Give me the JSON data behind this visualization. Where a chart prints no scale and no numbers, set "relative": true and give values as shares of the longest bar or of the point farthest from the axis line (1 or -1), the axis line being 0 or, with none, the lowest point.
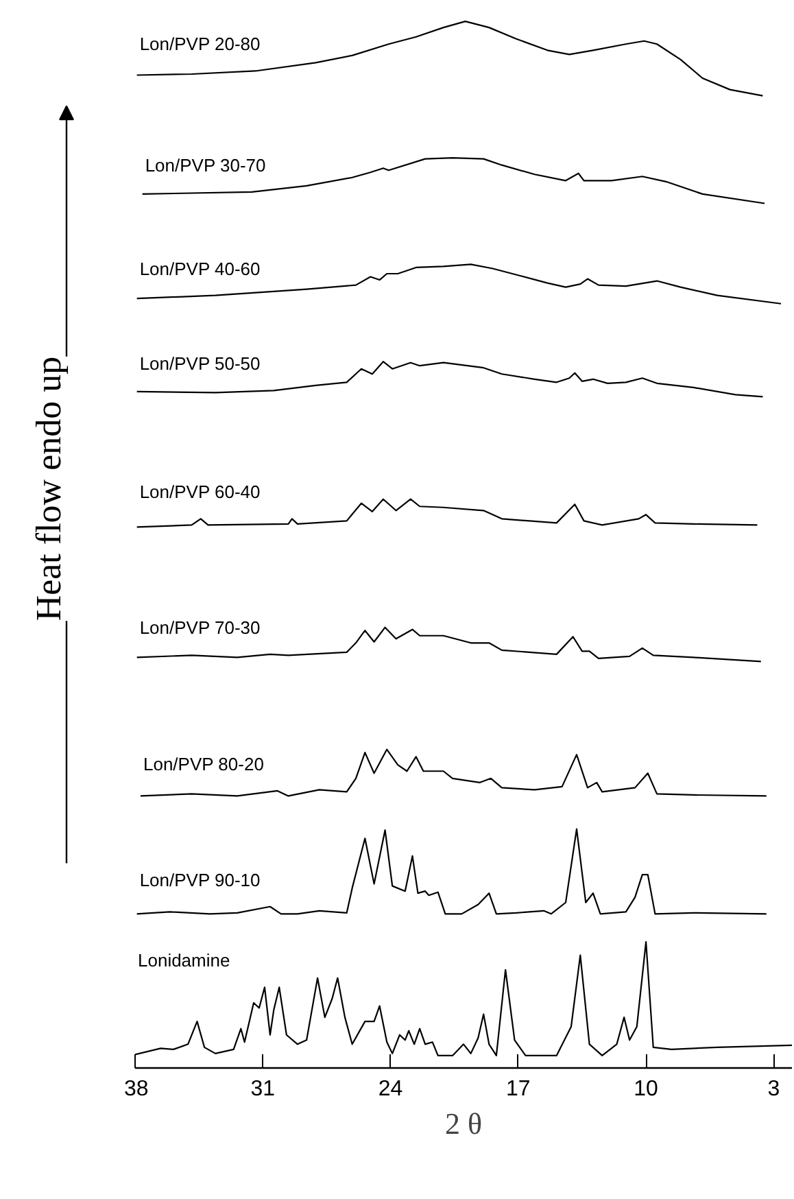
{
  "chart_data": {
    "type": "line",
    "relative": true,
    "xlabel": "2 θ",
    "ylabel": "Heat flow endo up",
    "xlim": [
      38,
      2
    ],
    "xticks": [
      38,
      31,
      24,
      17,
      10,
      3
    ],
    "tick_labels": "x",
    "series": [
      {
        "name": "Lon/PVP 20-80",
        "color": "#000000",
        "x": [
          37.9,
          34.9,
          31.4,
          28.1,
          26.1,
          24.1,
          22.6,
          21.1,
          19.9,
          18.6,
          17.1,
          15.4,
          14.2,
          12.9,
          11.1,
          10.1,
          9.4,
          8.1,
          6.9,
          5.4,
          3.6
        ],
        "values": [
          0.948,
          0.949,
          0.952,
          0.96,
          0.967,
          0.978,
          0.985,
          0.994,
          1.0,
          0.994,
          0.983,
          0.972,
          0.968,
          0.972,
          0.978,
          0.981,
          0.978,
          0.963,
          0.945,
          0.934,
          0.928
        ]
      },
      {
        "name": "Lon/PVP 30-70",
        "color": "#000000",
        "x": [
          37.6,
          31.6,
          28.6,
          26.1,
          25.1,
          24.4,
          24.1,
          22.1,
          20.6,
          18.9,
          17.9,
          16.1,
          14.4,
          13.7,
          13.4,
          11.9,
          10.2,
          8.9,
          6.9,
          3.5
        ],
        "values": [
          0.833,
          0.835,
          0.841,
          0.849,
          0.854,
          0.858,
          0.856,
          0.867,
          0.868,
          0.867,
          0.861,
          0.852,
          0.846,
          0.853,
          0.846,
          0.846,
          0.85,
          0.845,
          0.833,
          0.824
        ]
      },
      {
        "name": "Lon/PVP 40-60",
        "color": "#000000",
        "x": [
          37.9,
          33.6,
          28.6,
          25.9,
          25.1,
          24.6,
          24.2,
          23.6,
          22.6,
          21.1,
          19.6,
          18.4,
          16.9,
          15.4,
          14.4,
          13.6,
          13.2,
          12.6,
          11.1,
          9.4,
          8.1,
          6.1,
          2.6
        ],
        "values": [
          0.732,
          0.735,
          0.741,
          0.745,
          0.753,
          0.75,
          0.756,
          0.756,
          0.762,
          0.763,
          0.765,
          0.761,
          0.754,
          0.747,
          0.743,
          0.746,
          0.751,
          0.745,
          0.744,
          0.749,
          0.743,
          0.735,
          0.727
        ]
      },
      {
        "name": "Lon/PVP 50-50",
        "color": "#000000",
        "x": [
          37.9,
          33.6,
          30.4,
          28.1,
          26.4,
          25.6,
          25.0,
          24.4,
          23.9,
          22.9,
          22.4,
          21.1,
          18.9,
          17.9,
          16.1,
          14.9,
          14.2,
          13.9,
          13.5,
          12.9,
          12.1,
          11.1,
          10.2,
          9.4,
          7.4,
          5.1,
          3.6
        ],
        "values": [
          0.642,
          0.641,
          0.643,
          0.648,
          0.651,
          0.664,
          0.659,
          0.671,
          0.664,
          0.67,
          0.667,
          0.67,
          0.665,
          0.659,
          0.654,
          0.651,
          0.655,
          0.66,
          0.652,
          0.654,
          0.65,
          0.651,
          0.655,
          0.65,
          0.646,
          0.639,
          0.637
        ]
      },
      {
        "name": "Lon/PVP 60-40",
        "color": "#000000",
        "x": [
          37.9,
          34.9,
          34.4,
          34.0,
          29.6,
          29.4,
          29.1,
          26.4,
          25.6,
          25.0,
          24.4,
          23.7,
          22.9,
          22.4,
          21.1,
          18.9,
          17.9,
          14.9,
          13.9,
          13.4,
          12.4,
          10.4,
          10.0,
          9.5,
          7.4,
          3.9
        ],
        "values": [
          0.511,
          0.513,
          0.519,
          0.513,
          0.514,
          0.519,
          0.514,
          0.517,
          0.534,
          0.526,
          0.538,
          0.527,
          0.538,
          0.531,
          0.53,
          0.527,
          0.519,
          0.515,
          0.533,
          0.517,
          0.513,
          0.519,
          0.523,
          0.515,
          0.514,
          0.513
        ]
      },
      {
        "name": "Lon/PVP 70-30",
        "color": "#000000",
        "x": [
          37.9,
          34.9,
          32.4,
          30.6,
          29.6,
          26.4,
          25.9,
          25.4,
          24.9,
          24.3,
          23.7,
          22.8,
          22.4,
          21.1,
          19.6,
          18.6,
          17.9,
          14.9,
          14.0,
          13.5,
          13.1,
          12.6,
          10.9,
          10.2,
          9.6,
          7.4,
          3.7
        ],
        "values": [
          0.385,
          0.387,
          0.385,
          0.388,
          0.387,
          0.39,
          0.399,
          0.411,
          0.4,
          0.414,
          0.403,
          0.412,
          0.406,
          0.406,
          0.399,
          0.399,
          0.392,
          0.388,
          0.405,
          0.391,
          0.391,
          0.384,
          0.386,
          0.394,
          0.387,
          0.385,
          0.381
        ]
      },
      {
        "name": "Lon/PVP 80-20",
        "color": "#000000",
        "x": [
          37.7,
          34.9,
          32.4,
          30.2,
          29.6,
          27.9,
          26.4,
          25.9,
          25.4,
          24.9,
          24.2,
          23.6,
          23.1,
          22.6,
          22.2,
          21.1,
          20.6,
          19.1,
          18.5,
          17.9,
          16.1,
          14.6,
          13.8,
          13.2,
          12.7,
          12.4,
          10.6,
          9.9,
          9.4,
          7.4,
          3.4
        ],
        "values": [
          0.251,
          0.253,
          0.251,
          0.256,
          0.251,
          0.257,
          0.255,
          0.268,
          0.293,
          0.273,
          0.296,
          0.281,
          0.275,
          0.289,
          0.275,
          0.275,
          0.268,
          0.264,
          0.268,
          0.259,
          0.257,
          0.26,
          0.291,
          0.259,
          0.264,
          0.255,
          0.259,
          0.273,
          0.253,
          0.252,
          0.251
        ]
      },
      {
        "name": "Lon/PVP 90-10",
        "color": "#000000",
        "x": [
          37.9,
          36.1,
          33.9,
          32.4,
          30.6,
          30.0,
          29.1,
          27.9,
          26.4,
          26.1,
          25.4,
          24.9,
          24.3,
          23.9,
          23.2,
          22.8,
          22.5,
          22.1,
          21.9,
          21.4,
          21.0,
          20.1,
          19.2,
          18.6,
          18.2,
          17.1,
          15.6,
          15.2,
          14.4,
          13.8,
          13.3,
          12.9,
          12.5,
          11.1,
          10.6,
          10.2,
          9.9,
          9.5,
          7.4,
          3.4
        ],
        "values": [
          0.137,
          0.139,
          0.137,
          0.138,
          0.144,
          0.137,
          0.137,
          0.14,
          0.138,
          0.162,
          0.21,
          0.166,
          0.218,
          0.164,
          0.159,
          0.193,
          0.157,
          0.159,
          0.155,
          0.158,
          0.137,
          0.137,
          0.146,
          0.157,
          0.137,
          0.138,
          0.14,
          0.137,
          0.148,
          0.219,
          0.148,
          0.157,
          0.137,
          0.139,
          0.153,
          0.175,
          0.175,
          0.137,
          0.138,
          0.137
        ]
      },
      {
        "name": "Lonidamine",
        "color": "#000000",
        "x": [
          38.0,
          36.6,
          35.9,
          35.1,
          34.6,
          34.2,
          33.6,
          32.6,
          32.2,
          32.0,
          31.5,
          31.2,
          30.9,
          30.6,
          30.4,
          30.1,
          29.7,
          29.1,
          28.6,
          28.0,
          27.6,
          27.2,
          26.9,
          26.5,
          26.1,
          25.4,
          24.9,
          24.6,
          24.2,
          23.9,
          23.5,
          23.2,
          23.0,
          22.7,
          22.4,
          22.1,
          21.7,
          21.4,
          20.6,
          20.0,
          19.6,
          19.2,
          18.9,
          18.6,
          18.2,
          17.7,
          17.2,
          16.6,
          14.9,
          14.1,
          13.6,
          13.1,
          12.4,
          11.6,
          11.2,
          10.9,
          10.5,
          10.0,
          9.6,
          8.6,
          6.1,
          2.0
        ],
        "values": [
          0.001,
          0.007,
          0.006,
          0.011,
          0.033,
          0.008,
          0.002,
          0.006,
          0.026,
          0.013,
          0.051,
          0.046,
          0.066,
          0.02,
          0.044,
          0.066,
          0.02,
          0.011,
          0.015,
          0.075,
          0.037,
          0.055,
          0.075,
          0.037,
          0.011,
          0.033,
          0.033,
          0.048,
          0.013,
          0.002,
          0.02,
          0.015,
          0.024,
          0.011,
          0.026,
          0.011,
          0.013,
          0,
          0,
          0.011,
          0.002,
          0.017,
          0.04,
          0.011,
          0,
          0.083,
          0.015,
          0,
          0,
          0.028,
          0.097,
          0.011,
          0,
          0.011,
          0.037,
          0.015,
          0.028,
          0.11,
          0.008,
          0.006,
          0.008,
          0.01
        ]
      }
    ]
  }
}
